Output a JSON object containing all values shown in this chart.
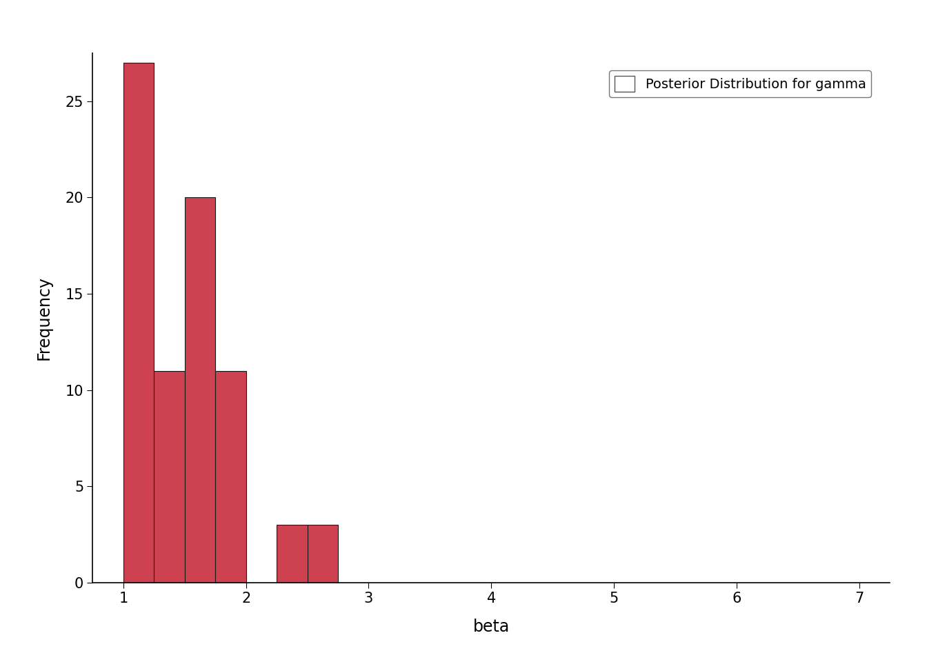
{
  "title": "",
  "xlabel": "beta",
  "ylabel": "Frequency",
  "xlim": [
    0.75,
    7.25
  ],
  "ylim": [
    0,
    27.5
  ],
  "xticks": [
    1,
    2,
    3,
    4,
    5,
    6,
    7
  ],
  "yticks": [
    0,
    5,
    10,
    15,
    20,
    25
  ],
  "bar_edges": [
    1.0,
    1.25,
    1.5,
    1.75,
    2.0,
    2.25,
    2.5
  ],
  "bar_heights": [
    27,
    11,
    20,
    11,
    0,
    3,
    3
  ],
  "bar_color": "#CD4150",
  "bar_edgecolor": "#1a1a1a",
  "legend_label": "Posterior Distribution for gamma",
  "background_color": "#ffffff",
  "legend_patch_color": "white",
  "legend_patch_edgecolor": "#555555"
}
